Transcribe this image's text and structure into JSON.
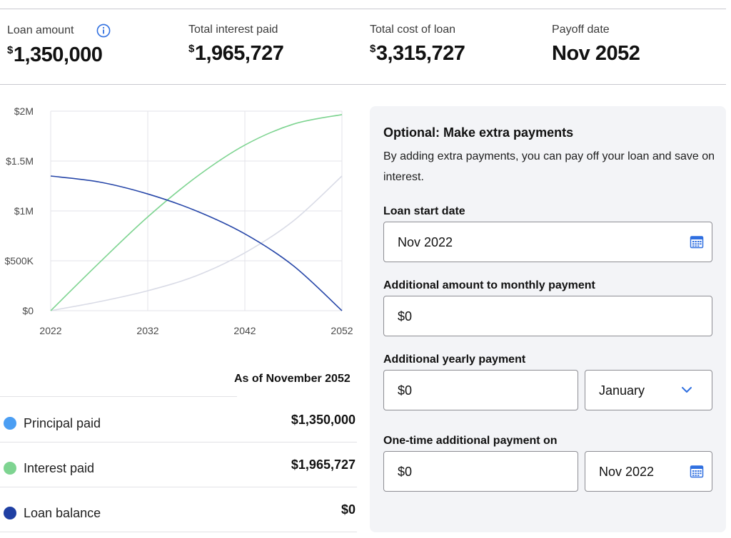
{
  "summary": {
    "loan_amount": {
      "label": "Loan amount",
      "currency": "$",
      "value": "1,350,000"
    },
    "total_interest": {
      "label": "Total interest paid",
      "currency": "$",
      "value": "1,965,727"
    },
    "total_cost": {
      "label": "Total cost of loan",
      "currency": "$",
      "value": "3,315,727"
    },
    "payoff": {
      "label": "Payoff date",
      "value": "Nov 2052"
    }
  },
  "chart_data": {
    "type": "line",
    "title": "",
    "xlabel": "",
    "ylabel": "",
    "x_ticks": [
      "2022",
      "2032",
      "2042",
      "2052"
    ],
    "y_ticks": [
      "$0",
      "$500K",
      "$1M",
      "$1.5M",
      "$2M"
    ],
    "xlim": [
      2022,
      2052
    ],
    "ylim": [
      0,
      2000000
    ],
    "grid": true,
    "x": [
      2022,
      2027,
      2032,
      2037,
      2042,
      2047,
      2052
    ],
    "series": [
      {
        "name": "Principal paid",
        "color": "#d9dbe6",
        "values": [
          0,
          90000,
          200000,
          350000,
          580000,
          900000,
          1350000
        ]
      },
      {
        "name": "Interest paid",
        "color": "#7ed491",
        "values": [
          0,
          480000,
          940000,
          1340000,
          1660000,
          1870000,
          1965727
        ]
      },
      {
        "name": "Loan balance",
        "color": "#2646a8",
        "values": [
          1350000,
          1290000,
          1170000,
          1000000,
          770000,
          450000,
          0
        ]
      }
    ]
  },
  "breakdown": {
    "as_of": "As of November 2052",
    "rows": [
      {
        "label": "Principal paid",
        "value": "$1,350,000",
        "color": "#4b9ef3"
      },
      {
        "label": "Interest paid",
        "value": "$1,965,727",
        "color": "#7ed491"
      },
      {
        "label": "Loan balance",
        "value": "$0",
        "color": "#1f3fa3"
      }
    ]
  },
  "extra": {
    "title": "Optional: Make extra payments",
    "description": "By adding extra payments, you can pay off your loan and save on interest.",
    "start_label": "Loan start date",
    "start_value": "Nov 2022",
    "monthly_label": "Additional amount to monthly payment",
    "monthly_value": "$0",
    "yearly_label": "Additional yearly payment",
    "yearly_value": "$0",
    "yearly_month": "January",
    "onetime_label": "One-time additional payment on",
    "onetime_value": "$0",
    "onetime_date": "Nov 2022"
  },
  "icons": {
    "info": "info-icon",
    "calendar": "calendar-icon",
    "dropdown": "chevron-down-icon"
  },
  "colors": {
    "accent": "#2f6fe0"
  }
}
